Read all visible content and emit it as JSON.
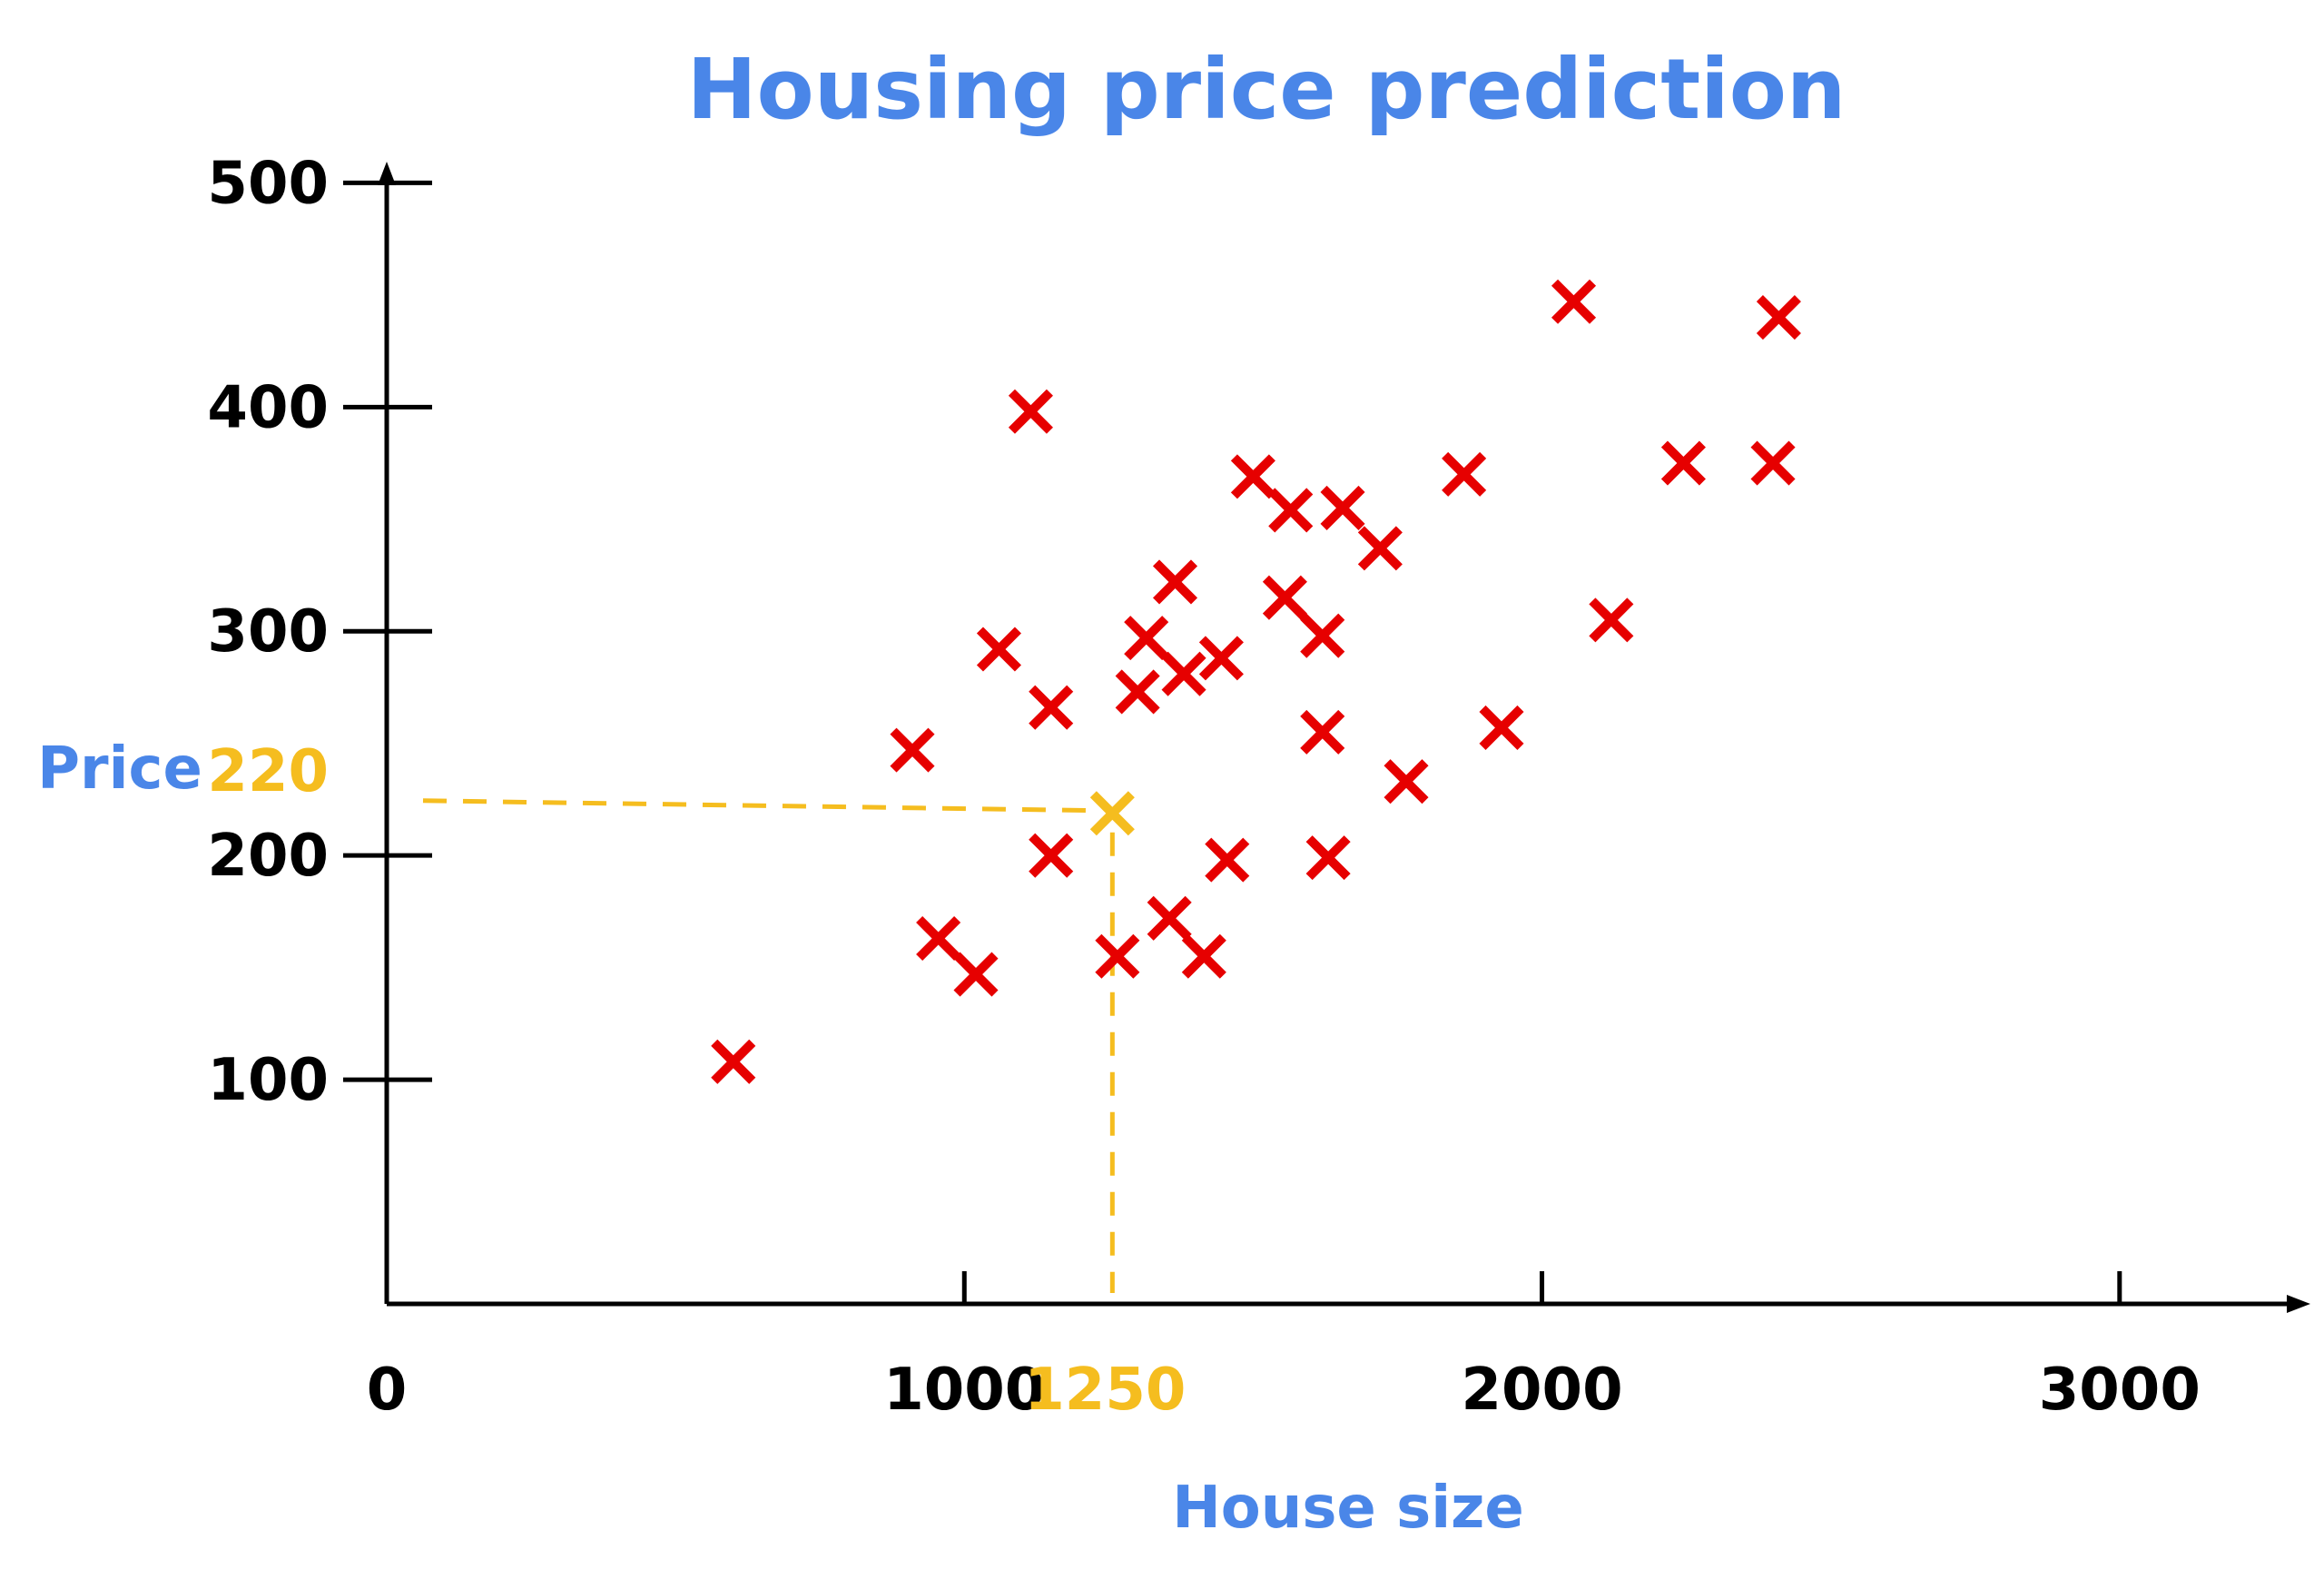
{
  "chart_data": {
    "type": "scatter",
    "title": "Housing price prediction",
    "xlabel": "House size",
    "ylabel": "Price",
    "xlim": [
      0,
      3400
    ],
    "ylim": [
      0,
      520
    ],
    "x_ticks": [
      "0",
      "1000",
      "2000",
      "3000"
    ],
    "y_ticks": [
      "100",
      "200",
      "300",
      "400",
      "500"
    ],
    "grid": false,
    "legend": "none",
    "points": [
      {
        "x": 600,
        "y": 108
      },
      {
        "x": 910,
        "y": 247
      },
      {
        "x": 955,
        "y": 163
      },
      {
        "x": 1020,
        "y": 147
      },
      {
        "x": 1060,
        "y": 292
      },
      {
        "x": 1115,
        "y": 398
      },
      {
        "x": 1150,
        "y": 266
      },
      {
        "x": 1150,
        "y": 200
      },
      {
        "x": 1265,
        "y": 155
      },
      {
        "x": 1300,
        "y": 273
      },
      {
        "x": 1315,
        "y": 297
      },
      {
        "x": 1355,
        "y": 172
      },
      {
        "x": 1365,
        "y": 322
      },
      {
        "x": 1380,
        "y": 281
      },
      {
        "x": 1415,
        "y": 155
      },
      {
        "x": 1445,
        "y": 288
      },
      {
        "x": 1455,
        "y": 198
      },
      {
        "x": 1500,
        "y": 369
      },
      {
        "x": 1555,
        "y": 315
      },
      {
        "x": 1565,
        "y": 354
      },
      {
        "x": 1620,
        "y": 298
      },
      {
        "x": 1620,
        "y": 255
      },
      {
        "x": 1630,
        "y": 199
      },
      {
        "x": 1655,
        "y": 355
      },
      {
        "x": 1720,
        "y": 337
      },
      {
        "x": 1765,
        "y": 233
      },
      {
        "x": 1865,
        "y": 370
      },
      {
        "x": 1930,
        "y": 257
      },
      {
        "x": 2055,
        "y": 447
      },
      {
        "x": 2120,
        "y": 305
      },
      {
        "x": 2245,
        "y": 375
      },
      {
        "x": 2400,
        "y": 375
      },
      {
        "x": 2410,
        "y": 440
      }
    ],
    "prediction": {
      "x": 1250,
      "y": 220,
      "x_label": "1250",
      "y_label": "220"
    }
  },
  "colors": {
    "title": "#4a86e8",
    "axis_label": "#4a86e8",
    "data_point": "#e60000",
    "prediction": "#f5bd1f",
    "axis": "#000000"
  }
}
